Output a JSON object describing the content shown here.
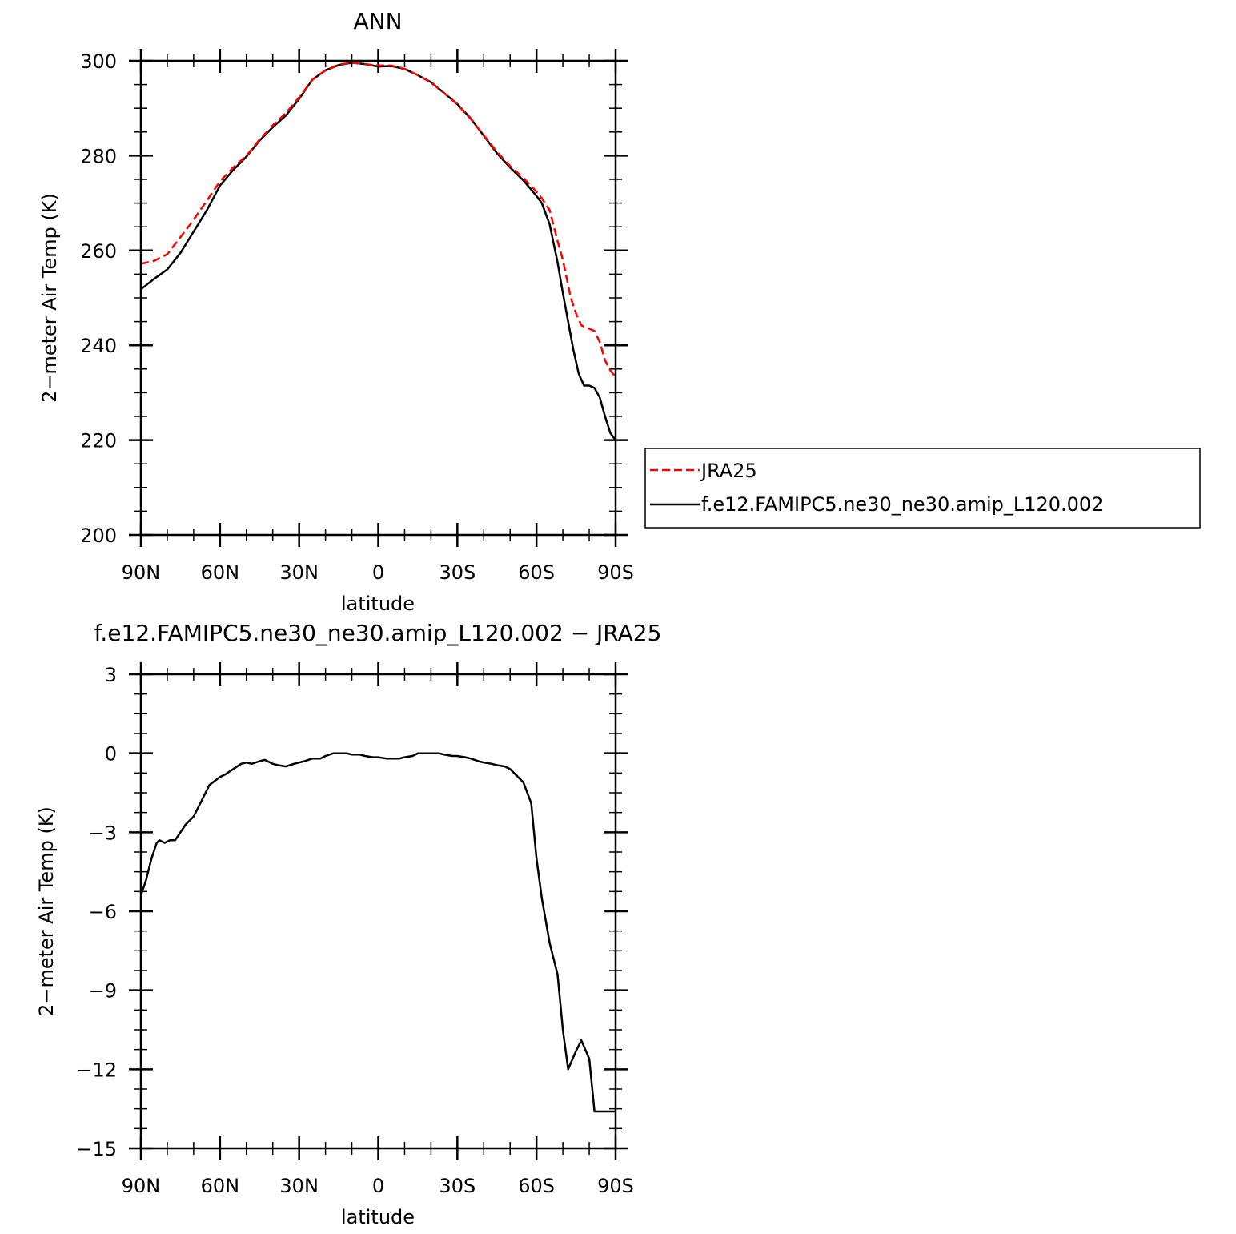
{
  "chart_data": [
    {
      "type": "line",
      "title": "ANN",
      "xlabel": "latitude",
      "ylabel": "2−meter Air Temp (K)",
      "xlim": [
        90,
        -90
      ],
      "ylim": [
        200,
        300
      ],
      "yticks": [
        200,
        220,
        240,
        260,
        280,
        300
      ],
      "xticks": [
        90,
        60,
        30,
        0,
        -30,
        -60,
        -90
      ],
      "xticklabels": [
        "90N",
        "60N",
        "30N",
        "0",
        "30S",
        "60S",
        "90S"
      ],
      "legend": "right",
      "series": [
        {
          "name": "JRA25",
          "color": "#ff0000",
          "dash": "dashed",
          "x": [
            90,
            85,
            80,
            75,
            70,
            65,
            60,
            55,
            50,
            45,
            40,
            35,
            30,
            25,
            20,
            15,
            10,
            5,
            0,
            -5,
            -10,
            -15,
            -20,
            -25,
            -30,
            -35,
            -40,
            -45,
            -50,
            -55,
            -60,
            -62,
            -65,
            -68,
            -70,
            -73,
            -75,
            -77,
            -80,
            -82,
            -84,
            -86,
            -88,
            -90
          ],
          "y": [
            257.2,
            257.8,
            259.2,
            262.8,
            266.5,
            270.5,
            274.6,
            277.5,
            280.0,
            283.4,
            286.4,
            289.0,
            292.3,
            296.0,
            298.0,
            299.2,
            299.6,
            299.3,
            299.0,
            299.0,
            298.3,
            297.0,
            295.4,
            293.2,
            290.8,
            287.8,
            284.3,
            280.8,
            277.8,
            275.3,
            272.4,
            271.0,
            268.5,
            262.0,
            258.0,
            250.0,
            246.7,
            244.2,
            243.5,
            243.0,
            240.7,
            236.8,
            234.7,
            233.3
          ]
        },
        {
          "name": "f.e12.FAMIPC5.ne30_ne30.amip_L120.002",
          "color": "#000000",
          "dash": "solid",
          "x": [
            90,
            85,
            80,
            75,
            70,
            65,
            60,
            55,
            50,
            45,
            40,
            35,
            30,
            25,
            20,
            15,
            10,
            5,
            0,
            -5,
            -10,
            -15,
            -20,
            -25,
            -30,
            -35,
            -40,
            -45,
            -50,
            -55,
            -60,
            -62,
            -65,
            -68,
            -70,
            -72,
            -74,
            -76,
            -78,
            -80,
            -82,
            -84,
            -86,
            -88,
            -90
          ],
          "y": [
            251.8,
            254.0,
            256.0,
            259.5,
            264.0,
            268.5,
            273.7,
            277.0,
            279.8,
            283.2,
            286.0,
            288.5,
            292.0,
            296.0,
            298.0,
            299.1,
            299.6,
            299.3,
            298.8,
            298.9,
            298.3,
            297.0,
            295.5,
            293.2,
            290.9,
            287.9,
            284.2,
            280.5,
            277.5,
            274.8,
            271.5,
            270.0,
            265.5,
            257.5,
            251.0,
            245.0,
            239.0,
            234.0,
            231.5,
            231.5,
            231.0,
            229.0,
            225.0,
            221.5,
            220.0
          ]
        }
      ]
    },
    {
      "type": "line",
      "title": "f.e12.FAMIPC5.ne30_ne30.amip_L120.002 − JRA25",
      "xlabel": "latitude",
      "ylabel": "2−meter Air Temp (K)",
      "xlim": [
        90,
        -90
      ],
      "ylim": [
        -15,
        3
      ],
      "yticks": [
        -15,
        -12,
        -9,
        -6,
        -3,
        0,
        3
      ],
      "yticklabels": [
        "−15",
        "−12",
        "−9",
        "−6",
        "−3",
        "0",
        "3"
      ],
      "xticks": [
        90,
        60,
        30,
        0,
        -30,
        -60,
        -90
      ],
      "xticklabels": [
        "90N",
        "60N",
        "30N",
        "0",
        "30S",
        "60S",
        "90S"
      ],
      "series": [
        {
          "color": "#000000",
          "dash": "solid",
          "x": [
            90,
            88,
            86,
            84,
            83,
            81,
            79,
            77,
            75,
            73,
            70,
            67,
            64,
            60,
            58,
            55,
            52,
            50,
            48,
            45,
            43,
            40,
            38,
            35,
            32,
            30,
            28,
            25,
            22,
            20,
            17,
            15,
            12,
            10,
            7,
            5,
            2,
            0,
            -3,
            -5,
            -8,
            -10,
            -13,
            -15,
            -18,
            -20,
            -23,
            -25,
            -28,
            -30,
            -33,
            -35,
            -38,
            -40,
            -43,
            -45,
            -48,
            -50,
            -53,
            -55,
            -58,
            -60,
            -62,
            -65,
            -68,
            -70,
            -72,
            -75,
            -77,
            -80,
            -82,
            -85,
            -88,
            -90
          ],
          "y": [
            -5.4,
            -4.8,
            -4.0,
            -3.4,
            -3.3,
            -3.4,
            -3.3,
            -3.3,
            -3.0,
            -2.7,
            -2.4,
            -1.8,
            -1.2,
            -0.9,
            -0.8,
            -0.6,
            -0.4,
            -0.35,
            -0.4,
            -0.3,
            -0.25,
            -0.4,
            -0.45,
            -0.5,
            -0.4,
            -0.35,
            -0.3,
            -0.2,
            -0.2,
            -0.1,
            0.0,
            0.0,
            0.0,
            -0.05,
            -0.05,
            -0.1,
            -0.15,
            -0.15,
            -0.2,
            -0.2,
            -0.2,
            -0.15,
            -0.1,
            0.0,
            0.0,
            0.0,
            0.0,
            -0.05,
            -0.1,
            -0.1,
            -0.15,
            -0.2,
            -0.3,
            -0.35,
            -0.4,
            -0.45,
            -0.5,
            -0.6,
            -0.9,
            -1.1,
            -1.9,
            -4.0,
            -5.5,
            -7.2,
            -8.4,
            -10.5,
            -12.0,
            -11.3,
            -10.9,
            -11.6,
            -13.6,
            -13.6,
            -13.6,
            -13.6
          ]
        }
      ]
    }
  ]
}
